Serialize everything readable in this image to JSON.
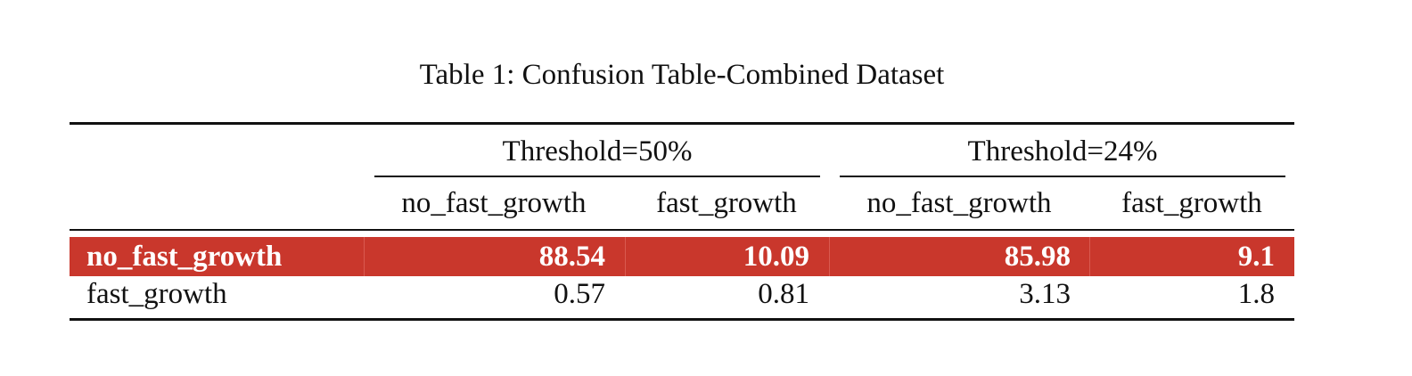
{
  "caption": "Table 1: Confusion Table-Combined Dataset",
  "groups": [
    {
      "label": "Threshold=50%"
    },
    {
      "label": "Threshold=24%"
    }
  ],
  "columns": [
    "no_fast_growth",
    "fast_growth",
    "no_fast_growth",
    "fast_growth"
  ],
  "rows": [
    {
      "label": "no_fast_growth",
      "values": [
        "88.54",
        "10.09",
        "85.98",
        "9.1"
      ],
      "highlighted": true
    },
    {
      "label": "fast_growth",
      "values": [
        "0.57",
        "0.81",
        "3.13",
        "1.8"
      ],
      "highlighted": false
    }
  ],
  "colors": {
    "highlight": "#c9372c",
    "highlight_text": "#ffffff",
    "text": "#111111"
  }
}
